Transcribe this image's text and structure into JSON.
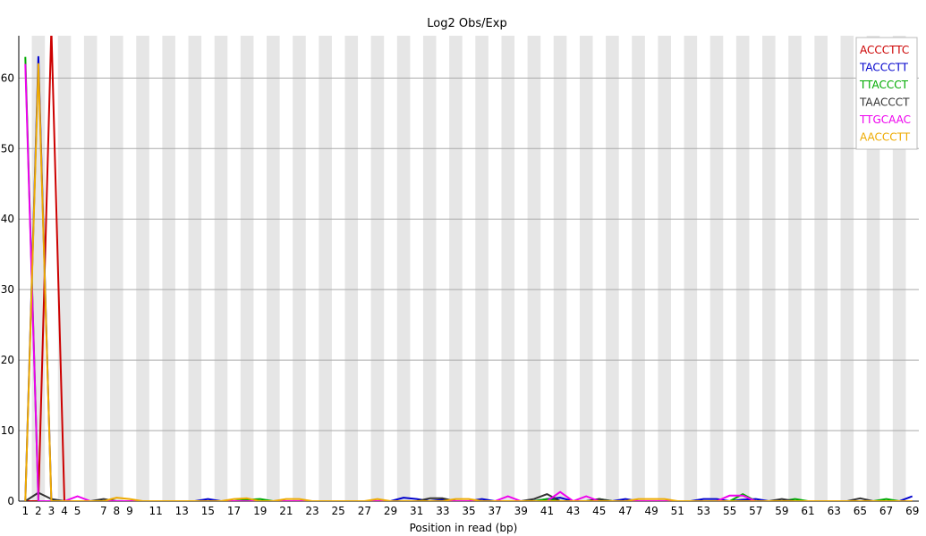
{
  "chart_data": {
    "type": "line",
    "title": "Log2 Obs/Exp",
    "xlabel": "Position in read (bp)",
    "ylabel": "",
    "ylim": [
      0,
      66
    ],
    "yticks": [
      0,
      10,
      20,
      30,
      40,
      50,
      60
    ],
    "x": [
      1,
      2,
      3,
      4,
      5,
      6,
      7,
      8,
      9,
      10,
      11,
      12,
      13,
      14,
      15,
      16,
      17,
      18,
      19,
      20,
      21,
      22,
      23,
      24,
      25,
      26,
      27,
      28,
      29,
      30,
      31,
      32,
      33,
      34,
      35,
      36,
      37,
      38,
      39,
      40,
      41,
      42,
      43,
      44,
      45,
      46,
      47,
      48,
      49,
      50,
      51,
      52,
      53,
      54,
      55,
      56,
      57,
      58,
      59,
      60,
      61,
      62,
      63,
      64,
      65,
      66,
      67,
      68,
      69
    ],
    "xtick_labels": [
      "1",
      "2",
      "3",
      "4",
      "5",
      "7",
      "8",
      "9",
      "11",
      "13",
      "15",
      "17",
      "19",
      "21",
      "23",
      "25",
      "27",
      "29",
      "31",
      "33",
      "35",
      "37",
      "39",
      "41",
      "43",
      "45",
      "47",
      "49",
      "51",
      "53",
      "55",
      "57",
      "59",
      "61",
      "63",
      "65",
      "67",
      "69"
    ],
    "grid": "horizontal",
    "background_bands": "alternating-grey",
    "legend_position": "top-right",
    "series": [
      {
        "name": "ACCCTTC",
        "color": "#cc0000",
        "values": [
          0,
          0,
          67,
          0,
          0,
          0,
          0,
          0,
          0,
          0,
          0,
          0,
          0,
          0,
          0,
          0,
          0,
          0,
          0,
          0,
          0,
          0,
          0,
          0,
          0,
          0,
          0,
          0,
          0,
          0,
          0,
          0,
          0,
          0,
          0,
          0,
          0,
          0,
          0,
          0,
          0,
          0,
          0,
          0,
          0,
          0,
          0,
          0,
          0,
          0,
          0,
          0,
          0,
          0,
          0,
          0,
          0,
          0,
          0,
          0,
          0,
          0,
          0,
          0,
          0,
          0,
          0,
          0,
          0
        ]
      },
      {
        "name": "TACCCTT",
        "color": "#0000cc",
        "values": [
          0,
          63,
          0,
          0,
          0,
          0,
          0,
          0,
          0,
          0,
          0,
          0,
          0,
          0,
          0.3,
          0,
          0,
          0,
          0,
          0,
          0,
          0,
          0,
          0,
          0,
          0,
          0,
          0,
          0,
          0.5,
          0.3,
          0,
          0.2,
          0,
          0,
          0.3,
          0,
          0,
          0,
          0,
          0.3,
          0.5,
          0,
          0,
          0,
          0,
          0.3,
          0,
          0,
          0,
          0,
          0,
          0.3,
          0.3,
          0,
          0.2,
          0.3,
          0,
          0,
          0,
          0,
          0,
          0,
          0,
          0,
          0,
          0,
          0,
          0.7
        ]
      },
      {
        "name": "TTACCCT",
        "color": "#00aa00",
        "values": [
          63,
          0,
          0,
          0,
          0,
          0,
          0,
          0,
          0,
          0,
          0,
          0,
          0,
          0,
          0,
          0,
          0,
          0.2,
          0.3,
          0,
          0,
          0,
          0,
          0,
          0,
          0,
          0,
          0,
          0,
          0,
          0,
          0,
          0,
          0,
          0,
          0,
          0,
          0,
          0,
          0,
          0.3,
          0,
          0,
          0,
          0.3,
          0,
          0,
          0,
          0,
          0,
          0,
          0,
          0,
          0,
          0,
          1.0,
          0,
          0,
          0,
          0.3,
          0,
          0,
          0,
          0,
          0,
          0,
          0.3,
          0,
          0
        ]
      },
      {
        "name": "TAACCCT",
        "color": "#333333",
        "values": [
          0,
          1.2,
          0.3,
          0,
          0,
          0,
          0.3,
          0,
          0,
          0,
          0,
          0,
          0,
          0,
          0,
          0,
          0,
          0,
          0,
          0,
          0,
          0,
          0,
          0,
          0,
          0,
          0,
          0,
          0,
          0,
          0,
          0.4,
          0.4,
          0,
          0,
          0,
          0,
          0,
          0,
          0.3,
          1.0,
          0,
          0,
          0,
          0.3,
          0,
          0,
          0,
          0,
          0,
          0,
          0,
          0,
          0,
          0,
          0,
          0,
          0,
          0.3,
          0,
          0,
          0,
          0,
          0,
          0.4,
          0,
          0,
          0,
          0
        ]
      },
      {
        "name": "TTGCAAC",
        "color": "#ee00ee",
        "values": [
          62,
          0,
          0,
          0,
          0.7,
          0,
          0,
          0,
          0,
          0,
          0,
          0,
          0,
          0,
          0,
          0,
          0,
          0,
          0,
          0,
          0,
          0,
          0,
          0,
          0,
          0,
          0,
          0,
          0,
          0,
          0,
          0,
          0,
          0,
          0,
          0,
          0,
          0.7,
          0,
          0,
          0,
          1.3,
          0,
          0.7,
          0,
          0,
          0,
          0,
          0,
          0,
          0,
          0,
          0,
          0,
          0.8,
          0.8,
          0,
          0,
          0,
          0,
          0,
          0,
          0,
          0,
          0,
          0,
          0,
          0,
          0
        ]
      },
      {
        "name": "AACCCTT",
        "color": "#eeaa00",
        "values": [
          0,
          62,
          0,
          0,
          0,
          0,
          0,
          0.5,
          0.3,
          0,
          0,
          0,
          0,
          0,
          0,
          0,
          0.3,
          0.4,
          0,
          0,
          0.3,
          0.3,
          0,
          0,
          0,
          0,
          0,
          0.3,
          0,
          0,
          0,
          0,
          0,
          0.3,
          0.3,
          0,
          0,
          0,
          0,
          0,
          0,
          0,
          0,
          0,
          0,
          0,
          0,
          0.3,
          0.3,
          0.3,
          0,
          0,
          0,
          0,
          0,
          0,
          0,
          0,
          0,
          0,
          0,
          0,
          0,
          0,
          0,
          0,
          0,
          0,
          0
        ]
      }
    ]
  }
}
